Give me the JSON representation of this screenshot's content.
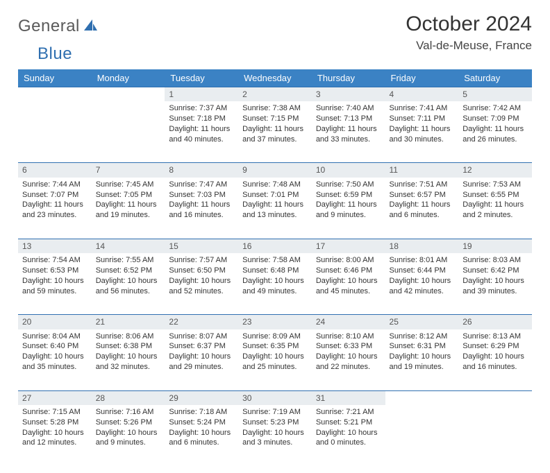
{
  "brand": {
    "part1": "General",
    "part2": "Blue"
  },
  "title": "October 2024",
  "location": "Val-de-Meuse, France",
  "colors": {
    "header_bg": "#3b82c4",
    "header_fg": "#ffffff",
    "daynum_bg": "#e9edf0",
    "border": "#2f6fb0",
    "brand_gray": "#5a5a5a",
    "brand_blue": "#2f6fb0"
  },
  "weekdays": [
    "Sunday",
    "Monday",
    "Tuesday",
    "Wednesday",
    "Thursday",
    "Friday",
    "Saturday"
  ],
  "layout": {
    "first_weekday_index": 2,
    "days_in_month": 31
  },
  "days": {
    "1": {
      "sunrise": "7:37 AM",
      "sunset": "7:18 PM",
      "daylight": "11 hours and 40 minutes."
    },
    "2": {
      "sunrise": "7:38 AM",
      "sunset": "7:15 PM",
      "daylight": "11 hours and 37 minutes."
    },
    "3": {
      "sunrise": "7:40 AM",
      "sunset": "7:13 PM",
      "daylight": "11 hours and 33 minutes."
    },
    "4": {
      "sunrise": "7:41 AM",
      "sunset": "7:11 PM",
      "daylight": "11 hours and 30 minutes."
    },
    "5": {
      "sunrise": "7:42 AM",
      "sunset": "7:09 PM",
      "daylight": "11 hours and 26 minutes."
    },
    "6": {
      "sunrise": "7:44 AM",
      "sunset": "7:07 PM",
      "daylight": "11 hours and 23 minutes."
    },
    "7": {
      "sunrise": "7:45 AM",
      "sunset": "7:05 PM",
      "daylight": "11 hours and 19 minutes."
    },
    "8": {
      "sunrise": "7:47 AM",
      "sunset": "7:03 PM",
      "daylight": "11 hours and 16 minutes."
    },
    "9": {
      "sunrise": "7:48 AM",
      "sunset": "7:01 PM",
      "daylight": "11 hours and 13 minutes."
    },
    "10": {
      "sunrise": "7:50 AM",
      "sunset": "6:59 PM",
      "daylight": "11 hours and 9 minutes."
    },
    "11": {
      "sunrise": "7:51 AM",
      "sunset": "6:57 PM",
      "daylight": "11 hours and 6 minutes."
    },
    "12": {
      "sunrise": "7:53 AM",
      "sunset": "6:55 PM",
      "daylight": "11 hours and 2 minutes."
    },
    "13": {
      "sunrise": "7:54 AM",
      "sunset": "6:53 PM",
      "daylight": "10 hours and 59 minutes."
    },
    "14": {
      "sunrise": "7:55 AM",
      "sunset": "6:52 PM",
      "daylight": "10 hours and 56 minutes."
    },
    "15": {
      "sunrise": "7:57 AM",
      "sunset": "6:50 PM",
      "daylight": "10 hours and 52 minutes."
    },
    "16": {
      "sunrise": "7:58 AM",
      "sunset": "6:48 PM",
      "daylight": "10 hours and 49 minutes."
    },
    "17": {
      "sunrise": "8:00 AM",
      "sunset": "6:46 PM",
      "daylight": "10 hours and 45 minutes."
    },
    "18": {
      "sunrise": "8:01 AM",
      "sunset": "6:44 PM",
      "daylight": "10 hours and 42 minutes."
    },
    "19": {
      "sunrise": "8:03 AM",
      "sunset": "6:42 PM",
      "daylight": "10 hours and 39 minutes."
    },
    "20": {
      "sunrise": "8:04 AM",
      "sunset": "6:40 PM",
      "daylight": "10 hours and 35 minutes."
    },
    "21": {
      "sunrise": "8:06 AM",
      "sunset": "6:38 PM",
      "daylight": "10 hours and 32 minutes."
    },
    "22": {
      "sunrise": "8:07 AM",
      "sunset": "6:37 PM",
      "daylight": "10 hours and 29 minutes."
    },
    "23": {
      "sunrise": "8:09 AM",
      "sunset": "6:35 PM",
      "daylight": "10 hours and 25 minutes."
    },
    "24": {
      "sunrise": "8:10 AM",
      "sunset": "6:33 PM",
      "daylight": "10 hours and 22 minutes."
    },
    "25": {
      "sunrise": "8:12 AM",
      "sunset": "6:31 PM",
      "daylight": "10 hours and 19 minutes."
    },
    "26": {
      "sunrise": "8:13 AM",
      "sunset": "6:29 PM",
      "daylight": "10 hours and 16 minutes."
    },
    "27": {
      "sunrise": "7:15 AM",
      "sunset": "5:28 PM",
      "daylight": "10 hours and 12 minutes."
    },
    "28": {
      "sunrise": "7:16 AM",
      "sunset": "5:26 PM",
      "daylight": "10 hours and 9 minutes."
    },
    "29": {
      "sunrise": "7:18 AM",
      "sunset": "5:24 PM",
      "daylight": "10 hours and 6 minutes."
    },
    "30": {
      "sunrise": "7:19 AM",
      "sunset": "5:23 PM",
      "daylight": "10 hours and 3 minutes."
    },
    "31": {
      "sunrise": "7:21 AM",
      "sunset": "5:21 PM",
      "daylight": "10 hours and 0 minutes."
    }
  },
  "labels": {
    "sunrise": "Sunrise: ",
    "sunset": "Sunset: ",
    "daylight": "Daylight: "
  }
}
